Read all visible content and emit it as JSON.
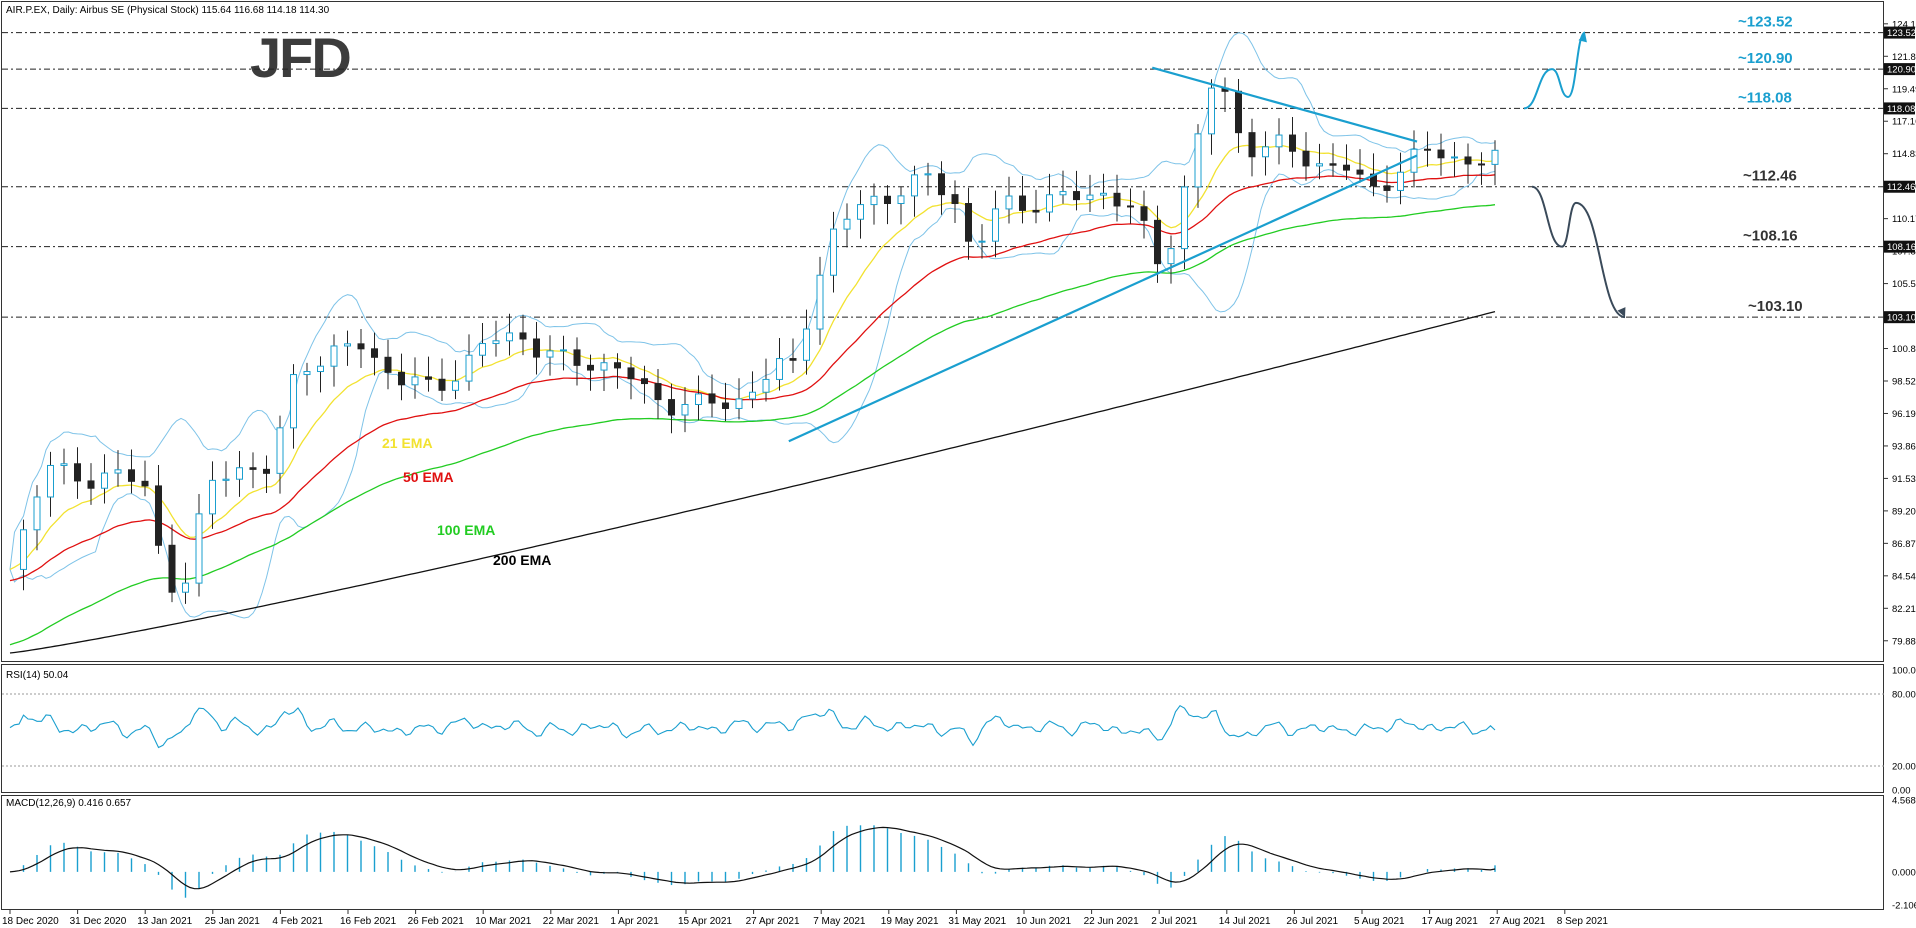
{
  "header": {
    "symbol_line": "AIR.P.EX, Daily:  Airbus SE (Physical Stock)  115.64 116.68 114.18 114.30",
    "logo_text": "JFD"
  },
  "panels": {
    "rsi_label": "RSI(14) 50.04",
    "macd_label": "MACD(12,26,9) 0.416 0.657"
  },
  "price_axis_ticks": [
    "124.15",
    "121.82",
    "119.49",
    "117.16",
    "114.83",
    "112.50",
    "110.17",
    "107.84",
    "105.51",
    "103.18",
    "100.85",
    "98.52",
    "96.19",
    "93.86",
    "91.53",
    "89.20",
    "86.87",
    "84.54",
    "82.21",
    "79.88"
  ],
  "rsi_axis_ticks": [
    "100.00",
    "80.00",
    "20.00",
    "0.00"
  ],
  "macd_axis_ticks": [
    "4.568",
    "0.000",
    "-2.106"
  ],
  "x_axis_ticks": [
    "18 Dec 2020",
    "31 Dec 2020",
    "13 Jan 2021",
    "25 Jan 2021",
    "4 Feb 2021",
    "16 Feb 2021",
    "26 Feb 2021",
    "10 Mar 2021",
    "22 Mar 2021",
    "1 Apr 2021",
    "15 Apr 2021",
    "27 Apr 2021",
    "7 May 2021",
    "19 May 2021",
    "31 May 2021",
    "10 Jun 2021",
    "22 Jun 2021",
    "2 Jul 2021",
    "14 Jul 2021",
    "26 Jul 2021",
    "5 Aug 2021",
    "17 Aug 2021",
    "27 Aug 2021",
    "8 Sep 2021"
  ],
  "level_labels": [
    "~123.52",
    "~120.90",
    "~118.08",
    "~112.46",
    "~108.16",
    "~103.10"
  ],
  "axis_boxes": [
    "123.52",
    "120.90",
    "118.08",
    "112.46",
    "108.16",
    "103.10"
  ],
  "ema_labels": {
    "ema21": "21 EMA",
    "ema50": "50 EMA",
    "ema100": "100 EMA",
    "ema200": "200 EMA"
  },
  "colors": {
    "ema21": "#f2e230",
    "ema50": "#e01010",
    "ema100": "#22cc22",
    "ema200": "#111111",
    "bollinger": "#7ec3e8",
    "trendline": "#1a9fcf",
    "rsi": "#1a9fcf",
    "macd_hist": "#1a9fcf",
    "macd_signal": "#111111",
    "level_label": "#1a9fcf",
    "level_label_dark": "#333333",
    "bull_candle": "#ffffff",
    "bear_candle": "#222222"
  },
  "chart_data": {
    "type": "candlestick",
    "title": "AIR.P.EX, Daily:  Airbus SE (Physical Stock)",
    "ohlc_last": {
      "open": 115.64,
      "high": 116.68,
      "low": 114.18,
      "close": 114.3
    },
    "ylim": [
      78.5,
      125.5
    ],
    "x_range": [
      "18 Dec 2020",
      "8 Sep 2021"
    ],
    "horizontal_levels": [
      123.52,
      120.9,
      118.08,
      112.46,
      108.16,
      103.1
    ],
    "trendlines": [
      {
        "name": "resistance",
        "from": {
          "date": "26 Jul 2021",
          "value": 121.0
        },
        "to": {
          "date": "15 Sep 2021",
          "value": 115.7
        }
      },
      {
        "name": "support",
        "from": {
          "date": "17 May 2021",
          "value": 94.2
        },
        "to": {
          "date": "15 Sep 2021",
          "value": 114.7
        }
      }
    ],
    "scenarios": [
      {
        "name": "bullish",
        "path": [
          118.08,
          120.9,
          118.9,
          123.52
        ]
      },
      {
        "name": "bearish",
        "path": [
          112.46,
          108.16,
          111.3,
          103.1
        ]
      }
    ],
    "emas_last": {
      "ema21": 114.4,
      "ema50": 112.4,
      "ema100": 109.9,
      "ema200": 103.5
    },
    "rsi": {
      "period": 14,
      "last": 50.04,
      "levels": [
        80,
        20
      ],
      "ylim": [
        0,
        100
      ]
    },
    "macd": {
      "params": "12,26,9",
      "main": 0.416,
      "signal": 0.657,
      "ylim": [
        -2.106,
        4.568
      ]
    }
  }
}
